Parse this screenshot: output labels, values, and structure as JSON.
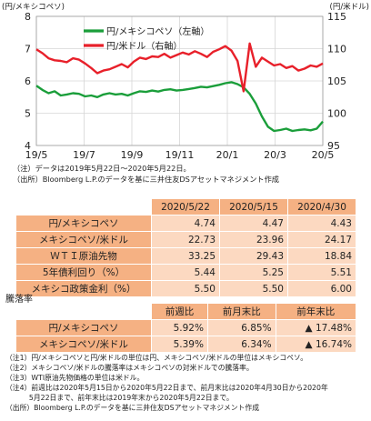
{
  "chart_data": {
    "type": "line",
    "left_axis_label": "(円/メキシコペソ)",
    "right_axis_label": "(円/米ドル)",
    "x_ticks": [
      "19/5",
      "19/7",
      "19/9",
      "19/11",
      "20/1",
      "20/3",
      "20/5"
    ],
    "left_ticks": [
      "8",
      "7",
      "6",
      "5",
      "4"
    ],
    "right_ticks": [
      "115",
      "110",
      "105",
      "100",
      "95"
    ],
    "ylim_left": [
      4,
      8
    ],
    "ylim_right": [
      95,
      115
    ],
    "grid": true,
    "legend_position": "top-left",
    "series": [
      {
        "name": "円/メキシコペソ（左軸）",
        "axis": "left",
        "color": "#1a9e3a",
        "values": [
          5.85,
          5.72,
          5.62,
          5.68,
          5.55,
          5.58,
          5.62,
          5.6,
          5.52,
          5.55,
          5.5,
          5.58,
          5.62,
          5.58,
          5.6,
          5.55,
          5.62,
          5.68,
          5.66,
          5.7,
          5.67,
          5.72,
          5.74,
          5.7,
          5.72,
          5.75,
          5.78,
          5.82,
          5.8,
          5.84,
          5.88,
          5.93,
          5.96,
          5.9,
          5.8,
          5.6,
          5.3,
          4.9,
          4.58,
          4.45,
          4.48,
          4.52,
          4.45,
          4.48,
          4.5,
          4.47,
          4.52,
          4.74
        ]
      },
      {
        "name": "円/米ドル（右軸）",
        "axis": "right",
        "color": "#e8202a",
        "values": [
          109.9,
          109.3,
          108.5,
          108.2,
          108.1,
          107.9,
          108.5,
          108.3,
          107.7,
          107.0,
          106.2,
          106.6,
          106.8,
          107.2,
          107.6,
          107.1,
          108.0,
          108.6,
          108.4,
          108.8,
          108.7,
          109.2,
          108.6,
          109.0,
          109.4,
          109.1,
          109.6,
          109.2,
          108.7,
          109.5,
          109.9,
          110.4,
          109.7,
          108.1,
          103.4,
          110.8,
          107.2,
          108.6,
          108.0,
          107.4,
          107.6,
          107.0,
          107.3,
          106.6,
          106.9,
          107.4,
          107.2,
          107.7
        ]
      }
    ]
  },
  "notes": [
    "（注）データは2019年5月22日～2020年5月22日。",
    "（出所）Bloomberg L.P.のデータを基に三井住友DSアセットマネジメント作成"
  ],
  "table1": {
    "headers": [
      "2020/5/22",
      "2020/5/15",
      "2020/4/30"
    ],
    "rows": [
      {
        "label": "円/メキシコペソ",
        "values": [
          "4.74",
          "4.47",
          "4.43"
        ]
      },
      {
        "label": "メキシコペソ/米ドル",
        "values": [
          "22.73",
          "23.96",
          "24.17"
        ]
      },
      {
        "label": "ＷＴＩ原油先物",
        "values": [
          "33.25",
          "29.43",
          "18.84"
        ]
      },
      {
        "label": "5年債利回り（%）",
        "values": [
          "5.44",
          "5.25",
          "5.51"
        ]
      },
      {
        "label": "メキシコ政策金利（%）",
        "values": [
          "5.50",
          "5.50",
          "6.00"
        ]
      }
    ]
  },
  "table2_title": "騰落率",
  "table2": {
    "headers": [
      "前週比",
      "前月末比",
      "前年末比"
    ],
    "rows": [
      {
        "label": "円/メキシコペソ",
        "values": [
          "5.92%",
          "6.85%",
          "▲ 17.48%"
        ]
      },
      {
        "label": "メキシコペソ/米ドル",
        "values": [
          "5.39%",
          "6.34%",
          "▲ 16.74%"
        ]
      }
    ]
  },
  "footnotes": [
    "（注1）円/メキシコペソと円/米ドルの単位は円、メキシコペソ/米ドルの単位はメキシコペソ。",
    "（注2）メキシコペソ/米ドルの騰落率はメキシコペソの対米ドルでの騰落率。",
    "（注3）WTI原油先物価格の単位は米ドル。",
    "（注4）前週比は2020年5月15日から2020年5月22日まで、前月末比は2020年4月30日から2020年",
    "　　　 5月22日まで、前年末比は2019年末から2020年5月22日まで。",
    "（出所）Bloomberg L.P.のデータを基に三井住友DSアセットマネジメント作成"
  ]
}
